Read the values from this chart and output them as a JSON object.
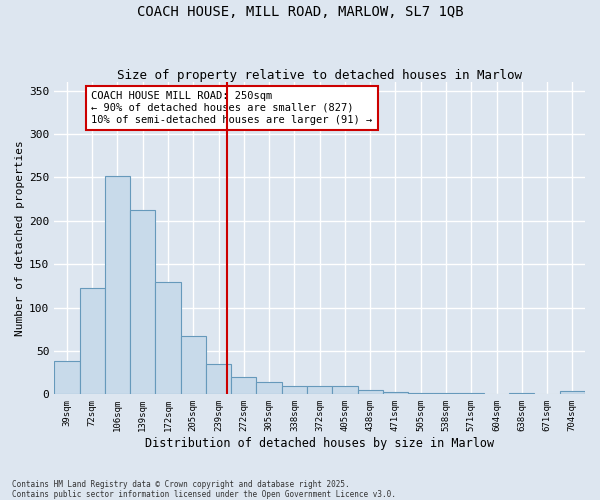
{
  "title": "COACH HOUSE, MILL ROAD, MARLOW, SL7 1QB",
  "subtitle": "Size of property relative to detached houses in Marlow",
  "xlabel": "Distribution of detached houses by size in Marlow",
  "ylabel": "Number of detached properties",
  "categories": [
    "39sqm",
    "72sqm",
    "106sqm",
    "139sqm",
    "172sqm",
    "205sqm",
    "239sqm",
    "272sqm",
    "305sqm",
    "338sqm",
    "372sqm",
    "405sqm",
    "438sqm",
    "471sqm",
    "505sqm",
    "538sqm",
    "571sqm",
    "604sqm",
    "638sqm",
    "671sqm",
    "704sqm"
  ],
  "values": [
    38,
    122,
    252,
    212,
    129,
    67,
    35,
    20,
    14,
    10,
    10,
    10,
    5,
    3,
    2,
    1,
    1,
    0,
    1,
    0,
    4
  ],
  "bar_color": "#c8daea",
  "bar_edge_color": "#6699bb",
  "annotation_text": "COACH HOUSE MILL ROAD: 250sqm\n← 90% of detached houses are smaller (827)\n10% of semi-detached houses are larger (91) →",
  "annotation_box_color": "#ffffff",
  "annotation_box_edge_color": "#cc0000",
  "vline_color": "#cc0000",
  "ylim": [
    0,
    360
  ],
  "yticks": [
    0,
    50,
    100,
    150,
    200,
    250,
    300,
    350
  ],
  "background_color": "#dde6f0",
  "plot_bg_color": "#dde6f0",
  "grid_color": "#ffffff",
  "footer_text": "Contains HM Land Registry data © Crown copyright and database right 2025.\nContains public sector information licensed under the Open Government Licence v3.0."
}
